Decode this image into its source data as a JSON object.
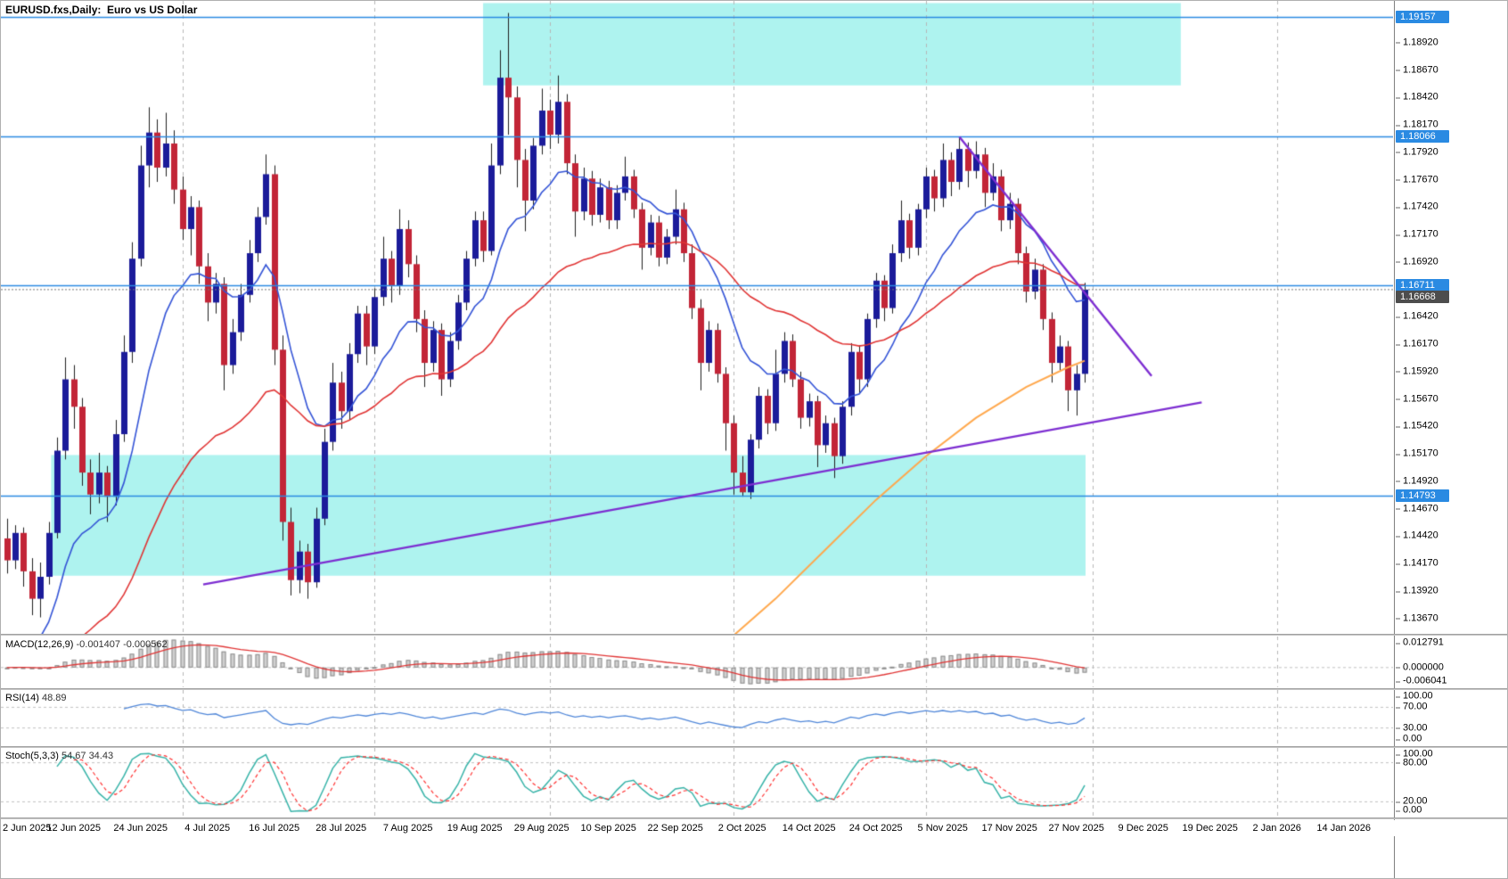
{
  "window": {
    "title": "EURUSD.fxs,Daily:  Euro vs US Dollar"
  },
  "chart_data": {
    "type": "candlestick",
    "symbol": "EURUSD.fxs",
    "timeframe": "Daily",
    "description": "Euro vs US Dollar",
    "legend_position": "top-left",
    "grid": "vertical-dashed-monthly",
    "y_axis": {
      "max": 1.193,
      "min": 1.1353,
      "tick_step": 0.0025
    },
    "y_ticks": [
      "1.18920",
      "1.18670",
      "1.18420",
      "1.18170",
      "1.17920",
      "1.17670",
      "1.17420",
      "1.17170",
      "1.16920",
      "1.16670",
      "1.16420",
      "1.16170",
      "1.15920",
      "1.15670",
      "1.15420",
      "1.15170",
      "1.14920",
      "1.14670",
      "1.14420",
      "1.14170",
      "1.13920",
      "1.13670"
    ],
    "x_ticks": [
      "2 Jun 2025",
      "12 Jun 2025",
      "24 Jun 2025",
      "4 Jul 2025",
      "16 Jul 2025",
      "28 Jul 2025",
      "7 Aug 2025",
      "19 Aug 2025",
      "29 Aug 2025",
      "10 Sep 2025",
      "22 Sep 2025",
      "2 Oct 2025",
      "14 Oct 2025",
      "24 Oct 2025",
      "5 Nov 2025",
      "17 Nov 2025",
      "27 Nov 2025",
      "9 Dec 2025",
      "19 Dec 2025",
      "2 Jan 2026",
      "14 Jan 2026"
    ],
    "x_tick_interval_bars": 8,
    "month_grid_bars": [
      21,
      44,
      65,
      87,
      110,
      130,
      152
    ],
    "candles": [
      [
        1.144,
        1.1458,
        1.1408,
        1.142
      ],
      [
        1.142,
        1.1452,
        1.1412,
        1.1445
      ],
      [
        1.1445,
        1.145,
        1.1396,
        1.141
      ],
      [
        1.141,
        1.1422,
        1.137,
        1.1385
      ],
      [
        1.1385,
        1.1418,
        1.1368,
        1.1405
      ],
      [
        1.1405,
        1.1455,
        1.1398,
        1.1445
      ],
      [
        1.1445,
        1.1532,
        1.144,
        1.152
      ],
      [
        1.152,
        1.1605,
        1.1512,
        1.1585
      ],
      [
        1.1585,
        1.1598,
        1.154,
        1.156
      ],
      [
        1.156,
        1.1568,
        1.1488,
        1.15
      ],
      [
        1.15,
        1.1512,
        1.1462,
        1.148
      ],
      [
        1.148,
        1.1518,
        1.1472,
        1.15
      ],
      [
        1.15,
        1.1506,
        1.1455,
        1.1478
      ],
      [
        1.1478,
        1.1548,
        1.147,
        1.1535
      ],
      [
        1.1535,
        1.1625,
        1.1528,
        1.161
      ],
      [
        1.161,
        1.171,
        1.16,
        1.1695
      ],
      [
        1.1695,
        1.1798,
        1.1688,
        1.178
      ],
      [
        1.178,
        1.1833,
        1.176,
        1.181
      ],
      [
        1.181,
        1.1822,
        1.1765,
        1.1778
      ],
      [
        1.1778,
        1.1828,
        1.177,
        1.18
      ],
      [
        1.18,
        1.1812,
        1.1745,
        1.1758
      ],
      [
        1.1758,
        1.177,
        1.1712,
        1.1722
      ],
      [
        1.1722,
        1.1752,
        1.1698,
        1.1742
      ],
      [
        1.1742,
        1.1748,
        1.1672,
        1.1688
      ],
      [
        1.1688,
        1.17,
        1.1638,
        1.1655
      ],
      [
        1.1655,
        1.1682,
        1.1645,
        1.1672
      ],
      [
        1.1672,
        1.1678,
        1.1575,
        1.1598
      ],
      [
        1.1598,
        1.164,
        1.159,
        1.1628
      ],
      [
        1.1628,
        1.1672,
        1.162,
        1.1662
      ],
      [
        1.1662,
        1.1712,
        1.1655,
        1.17
      ],
      [
        1.17,
        1.1742,
        1.1692,
        1.1733
      ],
      [
        1.1733,
        1.179,
        1.1726,
        1.1772
      ],
      [
        1.1772,
        1.178,
        1.1598,
        1.1612
      ],
      [
        1.1612,
        1.1625,
        1.1438,
        1.1455
      ],
      [
        1.1455,
        1.1468,
        1.1388,
        1.1402
      ],
      [
        1.1402,
        1.1438,
        1.139,
        1.1428
      ],
      [
        1.1428,
        1.1435,
        1.1385,
        1.14
      ],
      [
        1.14,
        1.1468,
        1.1395,
        1.1458
      ],
      [
        1.1458,
        1.154,
        1.1452,
        1.1528
      ],
      [
        1.1528,
        1.16,
        1.152,
        1.1582
      ],
      [
        1.1582,
        1.1592,
        1.154,
        1.1556
      ],
      [
        1.1556,
        1.1618,
        1.1548,
        1.1608
      ],
      [
        1.1608,
        1.1652,
        1.16,
        1.1645
      ],
      [
        1.1645,
        1.1652,
        1.1598,
        1.1615
      ],
      [
        1.1615,
        1.1668,
        1.1608,
        1.166
      ],
      [
        1.166,
        1.1715,
        1.1652,
        1.1695
      ],
      [
        1.1695,
        1.1702,
        1.1655,
        1.167
      ],
      [
        1.167,
        1.174,
        1.1662,
        1.1722
      ],
      [
        1.1722,
        1.173,
        1.1678,
        1.169
      ],
      [
        1.169,
        1.1698,
        1.1628,
        1.164
      ],
      [
        1.164,
        1.1648,
        1.1578,
        1.16
      ],
      [
        1.16,
        1.1638,
        1.1592,
        1.163
      ],
      [
        1.163,
        1.1636,
        1.157,
        1.1585
      ],
      [
        1.1585,
        1.1628,
        1.1578,
        1.162
      ],
      [
        1.162,
        1.1662,
        1.1612,
        1.1655
      ],
      [
        1.1655,
        1.1702,
        1.1648,
        1.1695
      ],
      [
        1.1695,
        1.1738,
        1.1688,
        1.173
      ],
      [
        1.173,
        1.1738,
        1.1692,
        1.1702
      ],
      [
        1.1702,
        1.18,
        1.1698,
        1.178
      ],
      [
        1.178,
        1.1885,
        1.1772,
        1.186
      ],
      [
        1.186,
        1.1919,
        1.1808,
        1.1842
      ],
      [
        1.1842,
        1.1852,
        1.176,
        1.1785
      ],
      [
        1.1785,
        1.1795,
        1.172,
        1.1748
      ],
      [
        1.1748,
        1.1805,
        1.174,
        1.1798
      ],
      [
        1.1798,
        1.185,
        1.179,
        1.183
      ],
      [
        1.183,
        1.184,
        1.1795,
        1.1808
      ],
      [
        1.1808,
        1.1862,
        1.18,
        1.1838
      ],
      [
        1.1838,
        1.1845,
        1.1772,
        1.1782
      ],
      [
        1.1782,
        1.179,
        1.1715,
        1.1738
      ],
      [
        1.1738,
        1.1778,
        1.173,
        1.1768
      ],
      [
        1.1768,
        1.1775,
        1.1725,
        1.1735
      ],
      [
        1.1735,
        1.1768,
        1.1728,
        1.176
      ],
      [
        1.176,
        1.1766,
        1.1722,
        1.173
      ],
      [
        1.173,
        1.1762,
        1.1722,
        1.1755
      ],
      [
        1.1755,
        1.1788,
        1.1748,
        1.177
      ],
      [
        1.177,
        1.1776,
        1.1732,
        1.174
      ],
      [
        1.174,
        1.1746,
        1.1685,
        1.1705
      ],
      [
        1.1705,
        1.1735,
        1.1698,
        1.1728
      ],
      [
        1.1728,
        1.1734,
        1.1688,
        1.1696
      ],
      [
        1.1696,
        1.1722,
        1.169,
        1.1715
      ],
      [
        1.1715,
        1.1758,
        1.1708,
        1.174
      ],
      [
        1.174,
        1.1746,
        1.1692,
        1.17
      ],
      [
        1.17,
        1.1708,
        1.164,
        1.165
      ],
      [
        1.165,
        1.1658,
        1.1575,
        1.16
      ],
      [
        1.16,
        1.1638,
        1.1592,
        1.163
      ],
      [
        1.163,
        1.1636,
        1.1582,
        1.159
      ],
      [
        1.159,
        1.1596,
        1.152,
        1.1545
      ],
      [
        1.1545,
        1.1552,
        1.148,
        1.15
      ],
      [
        1.15,
        1.1515,
        1.1478,
        1.1482
      ],
      [
        1.1482,
        1.1535,
        1.1476,
        1.153
      ],
      [
        1.153,
        1.1578,
        1.1522,
        1.157
      ],
      [
        1.157,
        1.1576,
        1.1535,
        1.1545
      ],
      [
        1.1545,
        1.1612,
        1.1538,
        1.159
      ],
      [
        1.159,
        1.1628,
        1.1582,
        1.162
      ],
      [
        1.162,
        1.1626,
        1.1578,
        1.1585
      ],
      [
        1.1585,
        1.1592,
        1.154,
        1.155
      ],
      [
        1.155,
        1.1572,
        1.1542,
        1.1565
      ],
      [
        1.1565,
        1.157,
        1.1505,
        1.1525
      ],
      [
        1.1525,
        1.1552,
        1.1518,
        1.1545
      ],
      [
        1.1545,
        1.155,
        1.1495,
        1.1515
      ],
      [
        1.1515,
        1.1565,
        1.1508,
        1.156
      ],
      [
        1.156,
        1.1618,
        1.1552,
        1.161
      ],
      [
        1.161,
        1.1616,
        1.1572,
        1.1585
      ],
      [
        1.1585,
        1.1645,
        1.1578,
        1.164
      ],
      [
        1.164,
        1.1682,
        1.1632,
        1.1675
      ],
      [
        1.1675,
        1.168,
        1.1638,
        1.165
      ],
      [
        1.165,
        1.1708,
        1.1645,
        1.17
      ],
      [
        1.17,
        1.1748,
        1.1692,
        1.173
      ],
      [
        1.173,
        1.1736,
        1.1695,
        1.1705
      ],
      [
        1.1705,
        1.1745,
        1.1698,
        1.174
      ],
      [
        1.174,
        1.1778,
        1.1732,
        1.177
      ],
      [
        1.177,
        1.1776,
        1.1738,
        1.175
      ],
      [
        1.175,
        1.18,
        1.1742,
        1.1785
      ],
      [
        1.1785,
        1.1792,
        1.1752,
        1.1765
      ],
      [
        1.1765,
        1.1806,
        1.1758,
        1.1795
      ],
      [
        1.1795,
        1.1801,
        1.176,
        1.1775
      ],
      [
        1.1775,
        1.1802,
        1.1768,
        1.179
      ],
      [
        1.179,
        1.1796,
        1.1742,
        1.1755
      ],
      [
        1.1755,
        1.1782,
        1.1748,
        1.177
      ],
      [
        1.177,
        1.1776,
        1.172,
        1.173
      ],
      [
        1.173,
        1.1755,
        1.1722,
        1.1745
      ],
      [
        1.1745,
        1.175,
        1.169,
        1.17
      ],
      [
        1.17,
        1.1706,
        1.1655,
        1.1665
      ],
      [
        1.1665,
        1.1695,
        1.1658,
        1.1685
      ],
      [
        1.1685,
        1.169,
        1.163,
        1.164
      ],
      [
        1.164,
        1.1646,
        1.1582,
        1.16
      ],
      [
        1.16,
        1.1625,
        1.1592,
        1.1615
      ],
      [
        1.1615,
        1.162,
        1.1556,
        1.1575
      ],
      [
        1.1575,
        1.1598,
        1.1552,
        1.159
      ],
      [
        1.159,
        1.1673,
        1.1582,
        1.16668
      ]
    ],
    "hlines": [
      {
        "price": 1.19157,
        "label": "1.19157"
      },
      {
        "price": 1.18066,
        "label": "1.18066"
      },
      {
        "price": 1.16711,
        "label": "1.16711"
      },
      {
        "price": 1.14793,
        "label": "1.14793"
      }
    ],
    "current_price": {
      "value": 1.16668,
      "label": "1.16668"
    },
    "rectangles": [
      {
        "b1": 57.5,
        "b2": 140,
        "p1": 1.1853,
        "p2": 1.1928
      },
      {
        "b1": 5.8,
        "b2": 128.6,
        "p1": 1.1406,
        "p2": 1.1516
      }
    ],
    "trendlines": [
      {
        "name": "ascending-support",
        "points": [
          [
            23.5,
            1.1398
          ],
          [
            143,
            1.1564
          ]
        ]
      },
      {
        "name": "descending-resistance",
        "points": [
          [
            114,
            1.1806
          ],
          [
            137,
            1.1588
          ]
        ]
      }
    ],
    "curves": [
      {
        "name": "orange-curve",
        "points": [
          [
            86,
            1.1345
          ],
          [
            92,
            1.1385
          ],
          [
            98,
            1.143
          ],
          [
            104,
            1.1475
          ],
          [
            110,
            1.1515
          ],
          [
            116,
            1.155
          ],
          [
            122,
            1.1578
          ],
          [
            127,
            1.1596
          ],
          [
            129,
            1.1602
          ]
        ]
      }
    ],
    "moving_averages": [
      {
        "name": "ma-fast-blue",
        "period": 13,
        "seed": 1.128
      },
      {
        "name": "ma-slow-red",
        "period": 40,
        "seed": 1.127
      }
    ],
    "indicators": {
      "macd": {
        "label": "MACD(12,26,9)",
        "values_text": "-0.001407 -0.000562",
        "fast": 12,
        "slow": 26,
        "signal": 9,
        "scale_labels": [
          "0.012791",
          "0.000000",
          "-0.006041"
        ]
      },
      "rsi": {
        "label": "RSI(14)",
        "value_text": "48.89",
        "period": 14,
        "levels": [
          70,
          30
        ],
        "scale_labels": [
          "100.00",
          "70.00",
          "30.00",
          "0.00"
        ]
      },
      "stoch": {
        "label": "Stoch(5,3,3)",
        "values_text": "54.67 34.43",
        "k": 5,
        "d": 3,
        "slowing": 3,
        "levels": [
          80,
          20
        ],
        "scale_labels": [
          "100.00",
          "80.00",
          "20.00",
          "0.00"
        ]
      }
    },
    "colors": {
      "background": "#ffff ff",
      "grid": "#b6b6b6",
      "bull": "#1b1b9a",
      "bear": "#c22537",
      "wick": "#1e1e1e",
      "ma_fast": "#3353d6",
      "ma_slow": "#e03434",
      "hline": "#2a8ae2",
      "badge_current": "#4d4d4d",
      "zone": "#aef3ef",
      "trendline": "#7d2ed1",
      "curve": "#ffa84d",
      "macd_hist_fill": "#d0d0d0",
      "macd_hist_stroke": "#8e8e8e",
      "macd_signal": "#e03434",
      "rsi_line": "#4f86d8",
      "level_line": "#c0c0c0",
      "stoch_main": "#37b3a8",
      "stoch_signal": "#ff3333",
      "separator": "#9a9a9a"
    }
  }
}
